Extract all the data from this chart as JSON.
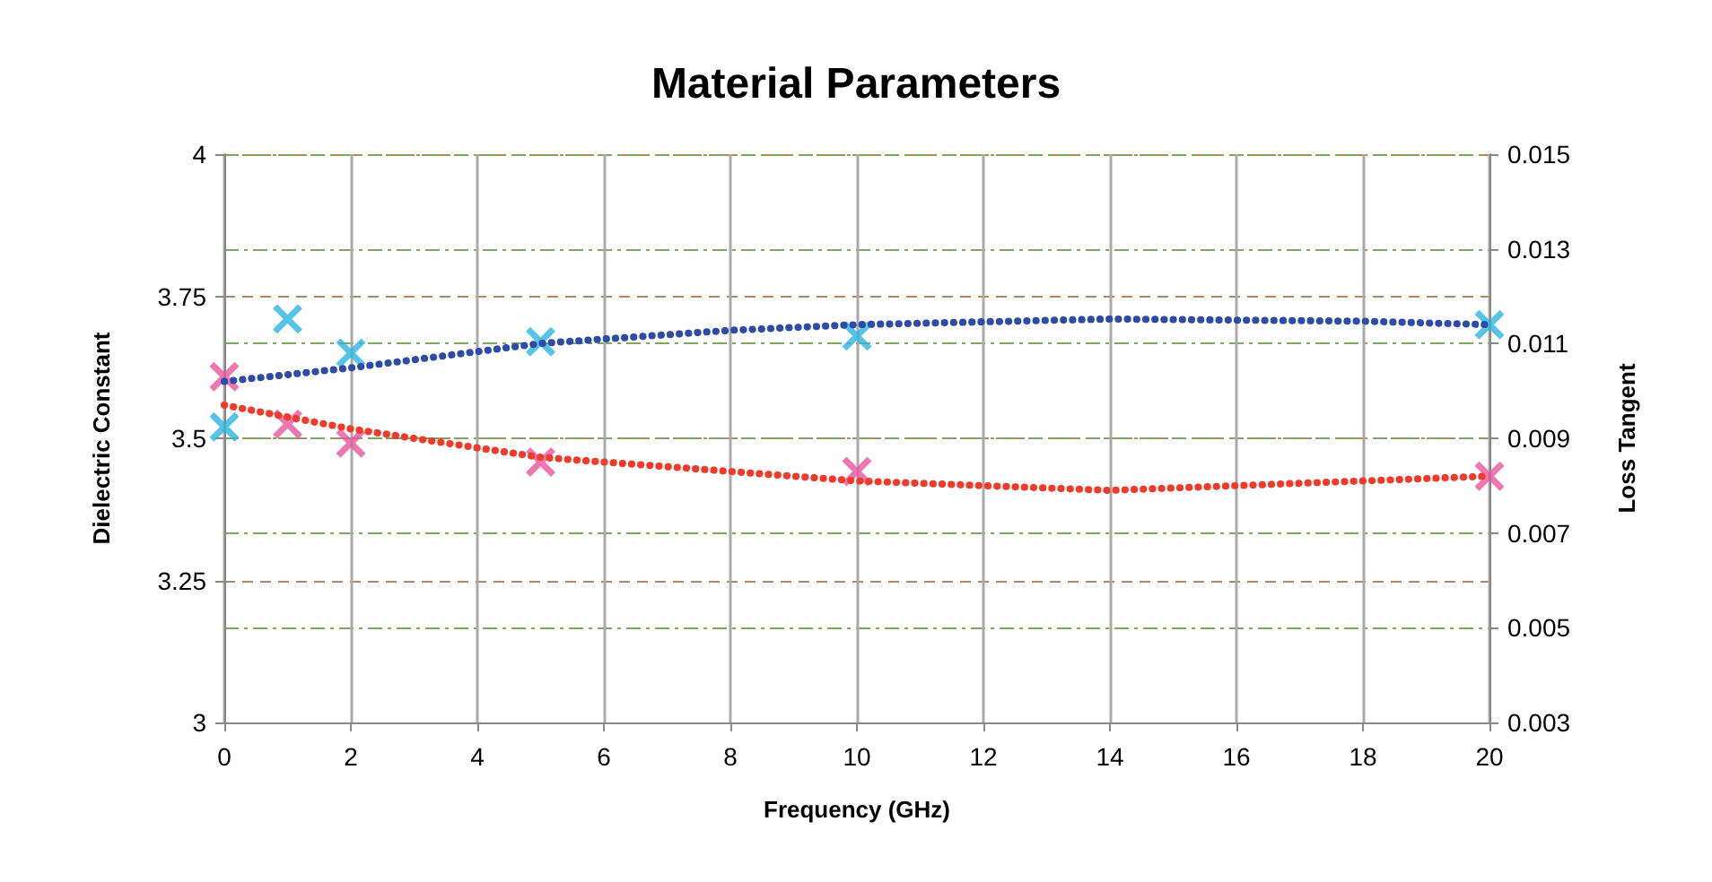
{
  "chart_data": {
    "type": "scatter",
    "title": "Material Parameters",
    "xlabel": "Frequency (GHz)",
    "ylabel": "Dielectric Constant",
    "y2label": "Loss Tangent",
    "xlim": [
      0,
      20
    ],
    "xticks": [
      0,
      2,
      4,
      6,
      8,
      10,
      12,
      14,
      16,
      18,
      20
    ],
    "ylim": [
      3,
      4
    ],
    "yticks": [
      3,
      3.25,
      3.5,
      3.75,
      4
    ],
    "y2lim": [
      0.003,
      0.015
    ],
    "y2ticks": [
      0.003,
      0.005,
      0.007,
      0.009,
      0.011,
      0.013,
      0.015
    ],
    "grid": true,
    "marker": "cross",
    "series": [
      {
        "type": "line",
        "color": "#2e4ba8",
        "line_style": "dotted",
        "marker": "none",
        "x": [
          0,
          2,
          5,
          8,
          10,
          14,
          18,
          20
        ],
        "values": [
          3.6,
          3.624,
          3.667,
          3.69,
          3.7,
          3.71,
          3.706,
          3.7
        ]
      },
      {
        "type": "line",
        "axis": "y2",
        "color": "#f03a2a",
        "line_style": "dotted",
        "marker": "none",
        "x": [
          0,
          2,
          5,
          8,
          10,
          14,
          18,
          20
        ],
        "values": [
          0.0097,
          0.0092,
          0.0086,
          0.0083,
          0.0081,
          0.0079,
          0.0081,
          0.0082
        ]
      },
      {
        "color": "#2cb5e0",
        "x": [
          0,
          1,
          2,
          5,
          10,
          20
        ],
        "values": [
          3.52,
          3.71,
          3.65,
          3.67,
          3.68,
          3.7
        ]
      },
      {
        "axis": "y2",
        "color": "#e8559e",
        "x": [
          0,
          1,
          2,
          5,
          10,
          20
        ],
        "values": [
          0.0103,
          0.0093,
          0.0089,
          0.0085,
          0.0083,
          0.0082
        ]
      }
    ]
  }
}
